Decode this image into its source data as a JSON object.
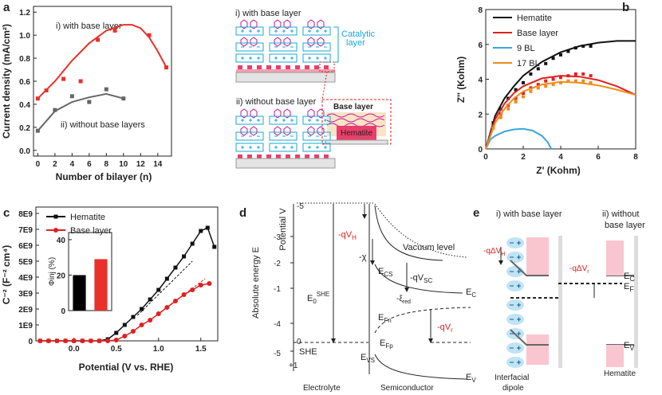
{
  "chart_data": [
    {
      "type": "scatter",
      "panel": "a",
      "xlabel": "Number of bilayer (n)",
      "ylabel": "Current density (mA/cm²)",
      "annotations": [
        "i) with base layer",
        "ii) without base layers"
      ],
      "xlim": [
        -0.5,
        15.6
      ],
      "xticks": [
        0,
        2,
        4,
        6,
        8,
        10,
        12,
        14
      ],
      "ylim": [
        -0.05,
        1.25
      ],
      "yticks": [
        {
          "value": 0,
          "label": "0.0"
        },
        0.2,
        0.4,
        0.6,
        0.8,
        {
          "value": 1,
          "label": "1.0"
        },
        1.2
      ],
      "series": [
        {
          "color": "#e8312a",
          "marker": "square",
          "x": [
            0,
            1,
            3,
            5,
            7,
            9,
            13,
            15
          ],
          "values": [
            0.45,
            0.52,
            0.62,
            0.6,
            0.96,
            1.04,
            1.0,
            0.72
          ],
          "fit_x": [
            0,
            2,
            4,
            6,
            8,
            10,
            11,
            12,
            13,
            14,
            15
          ],
          "fit_values": [
            0.45,
            0.6,
            0.78,
            0.93,
            1.04,
            1.09,
            1.09,
            1.06,
            0.98,
            0.86,
            0.72
          ]
        },
        {
          "color": "#666666",
          "marker": "square",
          "x": [
            0,
            2,
            4,
            6,
            8,
            10
          ],
          "values": [
            0.17,
            0.35,
            0.47,
            0.42,
            0.53,
            0.45
          ],
          "fit_x": [
            0,
            2,
            4,
            6,
            8,
            10
          ],
          "fit_values": [
            0.17,
            0.34,
            0.42,
            0.46,
            0.49,
            0.45
          ]
        }
      ]
    },
    {
      "type": "scatter",
      "panel": "b",
      "xlabel": "Z' (Kohm)",
      "ylabel": "Z'' (Kohm)",
      "xlim": [
        0,
        8
      ],
      "xticks": [
        0,
        2,
        4,
        6,
        8
      ],
      "ylim": [
        0,
        8
      ],
      "yticks": [
        0,
        2,
        4,
        6,
        8
      ],
      "series": [
        {
          "name": "Hematite",
          "color": "#111111",
          "marker": "square",
          "x": [
            0.4,
            0.8,
            1.2,
            1.6,
            2,
            2.4,
            2.8,
            3.2,
            3.6,
            4,
            4.4,
            4.8,
            5.2,
            5.6
          ],
          "values": [
            1.5,
            2.3,
            2.9,
            3.4,
            3.8,
            4.3,
            4.6,
            4.9,
            5.2,
            5.4,
            5.6,
            5.8,
            5.9,
            5.9
          ],
          "fit_x": [
            0,
            0.5,
            1,
            1.5,
            2,
            3,
            4,
            5,
            6,
            7,
            8
          ],
          "fit_values": [
            0,
            1.9,
            2.9,
            3.6,
            4.2,
            5.0,
            5.55,
            5.9,
            6.1,
            6.2,
            6.2
          ]
        },
        {
          "name": "Base layer",
          "color": "#e02020",
          "marker": "square",
          "x": [
            0.4,
            0.8,
            1.2,
            1.6,
            2,
            2.4,
            2.8,
            3.2,
            3.6,
            4,
            4.4,
            4.8,
            5.2,
            5.6
          ],
          "values": [
            1.3,
            2.0,
            2.5,
            2.9,
            3.2,
            3.5,
            3.7,
            3.9,
            4.0,
            4.1,
            4.2,
            4.3,
            4.3,
            4.2
          ],
          "fit_x": [
            0,
            0.5,
            1,
            1.5,
            2,
            3,
            4,
            5,
            6,
            7,
            8
          ],
          "fit_values": [
            0,
            1.7,
            2.6,
            3.2,
            3.6,
            4.05,
            4.2,
            4.15,
            3.95,
            3.6,
            3.1
          ]
        },
        {
          "name": "9 BL",
          "color": "#3aa6dd",
          "fit_x": [
            0,
            0.25,
            0.5,
            1,
            1.5,
            2,
            2.5,
            3,
            3.3,
            3.5
          ],
          "fit_values": [
            0,
            0.55,
            0.75,
            1.0,
            1.12,
            1.15,
            1.05,
            0.75,
            0.4,
            0
          ]
        },
        {
          "name": "17 BL",
          "color": "#f08c1a",
          "marker": "square",
          "x": [
            0.4,
            0.8,
            1.2,
            1.6,
            2,
            2.4,
            2.8,
            3.2,
            3.6,
            4,
            4.4,
            4.8,
            5.2,
            5.6
          ],
          "values": [
            1.2,
            1.8,
            2.3,
            2.7,
            3.0,
            3.3,
            3.5,
            3.6,
            3.7,
            3.8,
            3.9,
            3.9,
            3.9,
            3.8
          ],
          "fit_x": [
            0,
            0.5,
            1,
            1.5,
            2,
            3,
            4,
            5,
            6,
            7,
            8
          ],
          "fit_values": [
            0,
            1.5,
            2.3,
            2.9,
            3.3,
            3.7,
            3.85,
            3.8,
            3.65,
            3.4,
            3.1
          ]
        }
      ]
    },
    {
      "type": "line",
      "panel": "c",
      "xlabel": "Potential (V vs. RHE)",
      "ylabel": "C⁻² (F⁻² cm⁴)",
      "xlim": [
        -0.45,
        1.7
      ],
      "xticks": [
        {
          "value": 0,
          "label": "0.0"
        },
        0.5,
        {
          "value": 1,
          "label": "1.0"
        },
        1.5
      ],
      "ylim": [
        0,
        8400000000.0
      ],
      "yticks": [
        0,
        {
          "value": 1000000000.0,
          "label": "1E9"
        },
        {
          "value": 2000000000.0,
          "label": "2E9"
        },
        {
          "value": 3000000000.0,
          "label": "3E9"
        },
        {
          "value": 4000000000.0,
          "label": "4E9"
        },
        {
          "value": 5000000000.0,
          "label": "5E9"
        },
        {
          "value": 6000000000.0,
          "label": "6E9"
        },
        {
          "value": 7000000000.0,
          "label": "7E9"
        },
        {
          "value": 8000000000.0,
          "label": "8E9"
        }
      ],
      "series": [
        {
          "name": "Hematite",
          "color": "#111111",
          "marker": "square",
          "x": [
            -0.4,
            -0.3,
            -0.2,
            -0.1,
            0,
            0.1,
            0.2,
            0.3,
            0.4,
            0.5,
            0.6,
            0.7,
            0.8,
            0.9,
            1.0,
            1.1,
            1.2,
            1.3,
            1.4,
            1.5,
            1.58,
            1.66
          ],
          "values": [
            0,
            0,
            0,
            0,
            0,
            0,
            0,
            0,
            100000000.0,
            500000000.0,
            1000000000.0,
            1500000000.0,
            2000000000.0,
            2600000000.0,
            3200000000.0,
            3900000000.0,
            4600000000.0,
            5300000000.0,
            6100000000.0,
            6900000000.0,
            7100000000.0,
            5900000000.0
          ],
          "fit_x": [
            0.75,
            1.4
          ],
          "fit_values": [
            1600000000.0,
            5000000000.0
          ]
        },
        {
          "name": "Base layer",
          "color": "#e02020",
          "marker": "circle",
          "x": [
            -0.4,
            -0.3,
            -0.2,
            -0.1,
            0,
            0.1,
            0.2,
            0.3,
            0.4,
            0.5,
            0.6,
            0.7,
            0.8,
            0.9,
            1.0,
            1.1,
            1.2,
            1.3,
            1.4,
            1.5,
            1.6
          ],
          "values": [
            0,
            0,
            0,
            0,
            0,
            0,
            0,
            0,
            0,
            50000000.0,
            300000000.0,
            600000000.0,
            1000000000.0,
            1300000000.0,
            1700000000.0,
            2100000000.0,
            2500000000.0,
            2900000000.0,
            3200000000.0,
            3500000000.0,
            3600000000.0
          ],
          "fit_x": [
            0.9,
            1.55
          ],
          "fit_values": [
            1300000000.0,
            3900000000.0
          ]
        }
      ]
    },
    {
      "type": "bar",
      "ylabel": "Φinj (%)",
      "categories": [
        null,
        null
      ],
      "values": [
        20,
        29
      ],
      "colors": [
        "#000000",
        "#e8312a"
      ],
      "ylim": [
        0,
        44
      ],
      "yticks": [
        0,
        20,
        40
      ]
    }
  ],
  "schematic_a": {
    "title_i": "i) with base layer",
    "catalytic_layer": [
      "Catalytic",
      "layer"
    ],
    "base_layer": "Base layer",
    "hematite": "Hematite",
    "title_ii": "ii) without base layer"
  },
  "diagram_d": {
    "panel": "d",
    "energy_label": "Absolute energy E",
    "potential_label": "Potential V",
    "ticks": [
      "-5",
      "-3",
      "-2",
      "-1",
      "-4",
      "0",
      "-5",
      "+1"
    ],
    "qvh": [
      "-qV",
      "H"
    ],
    "chi": "-χ",
    "ecs": [
      "E",
      "CS"
    ],
    "qvsc": [
      "-qV",
      "SC"
    ],
    "ec": [
      "E",
      "C"
    ],
    "xi": [
      "-ξ",
      "red"
    ],
    "efn": [
      "E",
      "Fn"
    ],
    "qvr": [
      "-qV",
      "r"
    ],
    "efp": [
      "E",
      "Fp"
    ],
    "eshe": [
      "E",
      "0",
      "SHE"
    ],
    "she": "SHE",
    "evs": [
      "E",
      "VS"
    ],
    "ev": [
      "E",
      "V"
    ],
    "vacuum": "Vacuum level",
    "electrolyte": "Electrolyte",
    "semiconductor": "Semiconductor"
  },
  "diagram_e": {
    "panel": "e",
    "title_i": "i) with base layer",
    "title_ii": [
      "ii) without",
      "base layer"
    ],
    "qdvh": [
      "-qΔV",
      "H"
    ],
    "qdvr": [
      "-qΔV",
      "r"
    ],
    "ec": [
      "E",
      "C"
    ],
    "ef": [
      "E",
      "F"
    ],
    "ev": [
      "E",
      "V"
    ],
    "dipole": [
      "Interfacial",
      "dipole"
    ],
    "hematite": "Hematite"
  }
}
